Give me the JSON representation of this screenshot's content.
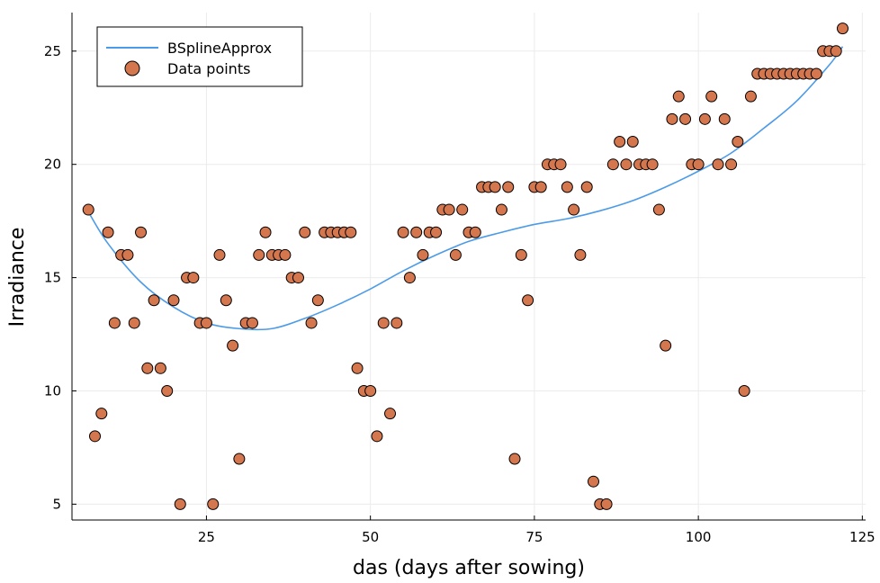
{
  "chart_data": {
    "type": "scatter",
    "xlabel": "das (days after sowing)",
    "ylabel": "Irradiance",
    "xlim": [
      4.5,
      125.5
    ],
    "ylim": [
      4.3,
      26.7
    ],
    "x_ticks": [
      25,
      50,
      75,
      100,
      125
    ],
    "y_ticks": [
      5,
      10,
      15,
      20,
      25
    ],
    "grid": true,
    "legend_position": "top-left",
    "colors": {
      "line": "#4c9be8",
      "points": "#d4764e",
      "point_edge": "#000000",
      "grid": "#ebebeb",
      "axis": "#000000"
    },
    "series": [
      {
        "name": "BSplineApprox",
        "type": "line",
        "x": [
          7,
          10,
          15,
          20,
          25,
          30,
          35,
          40,
          45,
          50,
          55,
          60,
          65,
          70,
          75,
          80,
          85,
          90,
          95,
          100,
          105,
          110,
          115,
          120,
          122
        ],
        "y": [
          17.9,
          16.5,
          14.8,
          13.7,
          13.0,
          12.75,
          12.75,
          13.2,
          13.8,
          14.5,
          15.3,
          16.0,
          16.6,
          17.0,
          17.35,
          17.6,
          17.95,
          18.4,
          19.0,
          19.7,
          20.5,
          21.6,
          22.8,
          24.4,
          25.2
        ]
      },
      {
        "name": "Data points",
        "type": "scatter",
        "x": [
          7,
          8,
          9,
          10,
          11,
          12,
          13,
          14,
          15,
          16,
          17,
          18,
          19,
          20,
          21,
          22,
          23,
          24,
          25,
          26,
          27,
          28,
          29,
          30,
          31,
          32,
          33,
          34,
          35,
          36,
          37,
          38,
          39,
          40,
          41,
          42,
          43,
          44,
          45,
          46,
          47,
          48,
          49,
          50,
          51,
          52,
          53,
          54,
          55,
          56,
          57,
          58,
          59,
          60,
          61,
          62,
          63,
          64,
          65,
          66,
          67,
          68,
          69,
          70,
          71,
          72,
          73,
          74,
          75,
          76,
          77,
          78,
          79,
          80,
          81,
          82,
          83,
          84,
          85,
          86,
          87,
          88,
          89,
          90,
          91,
          92,
          93,
          94,
          95,
          96,
          97,
          98,
          99,
          100,
          101,
          102,
          103,
          104,
          105,
          106,
          107,
          108,
          109,
          110,
          111,
          112,
          113,
          114,
          115,
          116,
          117,
          118,
          119,
          120,
          121,
          122
        ],
        "y": [
          18,
          8,
          9,
          17,
          13,
          16,
          16,
          13,
          17,
          11,
          14,
          11,
          10,
          14,
          5,
          15,
          15,
          13,
          13,
          5,
          16,
          14,
          12,
          7,
          13,
          13,
          16,
          17,
          16,
          16,
          16,
          15,
          15,
          17,
          13,
          14,
          17,
          17,
          17,
          17,
          17,
          11,
          10,
          10,
          8,
          13,
          9,
          13,
          17,
          15,
          17,
          16,
          17,
          17,
          18,
          18,
          16,
          18,
          17,
          17,
          19,
          19,
          19,
          18,
          19,
          7,
          16,
          14,
          19,
          19,
          20,
          20,
          20,
          19,
          18,
          16,
          19,
          6,
          5,
          5,
          20,
          21,
          20,
          21,
          20,
          20,
          20,
          18,
          12,
          22,
          23,
          22,
          20,
          20,
          22,
          23,
          20,
          22,
          20,
          21,
          10,
          23,
          24,
          24,
          24,
          24,
          24,
          24,
          24,
          24,
          24,
          24,
          25,
          25,
          25,
          26
        ]
      }
    ]
  }
}
